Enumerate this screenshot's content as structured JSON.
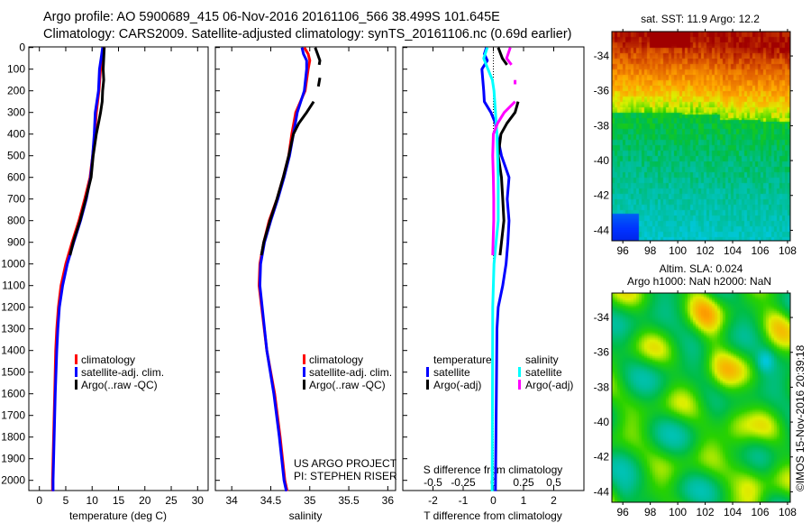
{
  "header": {
    "line1": "Argo profile: AO 5900689_415 06-Nov-2016 20161106_566 38.499S 101.645E",
    "line2": "Climatology: CARS2009. Satellite-adjusted climatology: synTS_20161106.nc (0.69d earlier)"
  },
  "colors": {
    "climatology": "#ff0000",
    "satellite": "#0000ff",
    "argo": "#000000",
    "s_satellite": "#00ffff",
    "s_argo": "#ff00ff"
  },
  "chart_data": [
    {
      "type": "line",
      "id": "temperature",
      "xlabel": "temperature (deg C)",
      "ylabel": "",
      "xlim": [
        -2,
        32
      ],
      "ylim": [
        2050,
        0
      ],
      "xticks": [
        0,
        5,
        10,
        15,
        20,
        25,
        30
      ],
      "xtick_labels": [
        "0",
        "5",
        "10",
        "15",
        "20",
        "25",
        "30"
      ],
      "yticks": [
        0,
        100,
        200,
        300,
        400,
        500,
        600,
        700,
        800,
        900,
        1000,
        1100,
        1200,
        1300,
        1400,
        1500,
        1600,
        1700,
        1800,
        1900,
        2000
      ],
      "ytick_labels": [
        "0",
        "100",
        "200",
        "300",
        "400",
        "500",
        "600",
        "700",
        "800",
        "900",
        "1000",
        "1100",
        "1200",
        "1300",
        "1400",
        "1500",
        "1600",
        "1700",
        "1800",
        "1900",
        "2000"
      ],
      "legend": [
        "climatology",
        "satellite-adj. clim.",
        "Argo(..raw -QC)"
      ],
      "series": [
        {
          "name": "climatology",
          "color": "#ff0000",
          "depth": [
            0,
            50,
            100,
            200,
            300,
            400,
            500,
            600,
            700,
            800,
            900,
            1000,
            1100,
            1200,
            1300,
            1400,
            1600,
            1800,
            2000,
            2050
          ],
          "values": [
            12.3,
            12.0,
            11.6,
            11.3,
            10.8,
            10.5,
            10.1,
            9.6,
            8.6,
            7.5,
            6.2,
            5.0,
            4.1,
            3.6,
            3.3,
            3.1,
            2.9,
            2.7,
            2.5,
            2.5
          ]
        },
        {
          "name": "satellite-adj. clim.",
          "color": "#0000ff",
          "depth": [
            0,
            50,
            100,
            200,
            300,
            400,
            500,
            600,
            700,
            800,
            900,
            1000,
            1100,
            1200,
            1300,
            1400,
            1600,
            1800,
            2000,
            2050
          ],
          "values": [
            12.0,
            11.7,
            11.4,
            11.2,
            10.6,
            10.4,
            10.1,
            9.7,
            8.9,
            7.8,
            6.5,
            5.3,
            4.4,
            3.8,
            3.5,
            3.3,
            3.0,
            2.8,
            2.6,
            2.6
          ]
        },
        {
          "name": "Argo(..raw -QC)",
          "color": "#000000",
          "depth": [
            0,
            50,
            100,
            150,
            200,
            250,
            300,
            350,
            400,
            500,
            600,
            700,
            800,
            900,
            960
          ],
          "values": [
            12.3,
            12.2,
            12.1,
            12.2,
            12.0,
            11.9,
            11.6,
            11.2,
            10.8,
            10.2,
            9.8,
            8.8,
            7.7,
            6.4,
            5.8
          ]
        }
      ]
    },
    {
      "type": "line",
      "id": "salinity",
      "xlabel": "salinity",
      "xlim": [
        33.79,
        36.1
      ],
      "ylim": [
        2050,
        0
      ],
      "xticks": [
        34,
        34.5,
        35,
        35.5,
        36
      ],
      "xtick_labels": [
        "34",
        "34.5",
        "35",
        "35.5",
        "36"
      ],
      "legend": [
        "climatology",
        "satellite-adj. clim.",
        "Argo(..raw -QC)"
      ],
      "annotation": [
        "US ARGO PROJECT",
        "PI: STEPHEN RISER"
      ],
      "series": [
        {
          "name": "climatology",
          "color": "#ff0000",
          "depth": [
            0,
            30,
            60,
            100,
            200,
            300,
            400,
            500,
            600,
            700,
            800,
            900,
            1000,
            1100,
            1400,
            1600,
            1800,
            2000,
            2050
          ],
          "values": [
            34.93,
            34.98,
            35.0,
            34.98,
            34.94,
            34.82,
            34.77,
            34.73,
            34.66,
            34.58,
            34.48,
            34.41,
            34.36,
            34.35,
            34.45,
            34.55,
            34.62,
            34.68,
            34.71
          ]
        },
        {
          "name": "satellite-adj. clim.",
          "color": "#0000ff",
          "depth": [
            0,
            30,
            60,
            100,
            200,
            300,
            400,
            500,
            600,
            700,
            800,
            900,
            1000,
            1100,
            1400,
            1600,
            1800,
            2000,
            2050
          ],
          "values": [
            34.9,
            34.92,
            34.96,
            34.96,
            34.93,
            34.84,
            34.79,
            34.74,
            34.67,
            34.59,
            34.5,
            34.42,
            34.37,
            34.36,
            34.45,
            34.54,
            34.61,
            34.67,
            34.7
          ]
        },
        {
          "name": "Argo(..raw -QC)",
          "color": "#000000",
          "depth": [
            0,
            30,
            60,
            80,
            null,
            140,
            180,
            null,
            250,
            300,
            350,
            400,
            500,
            600,
            700,
            800,
            900,
            960
          ],
          "values": [
            35.07,
            35.1,
            35.13,
            35.12,
            null,
            35.13,
            35.11,
            null,
            35.05,
            34.96,
            34.86,
            34.79,
            34.73,
            34.66,
            34.58,
            34.49,
            34.41,
            34.38
          ]
        }
      ]
    },
    {
      "type": "line",
      "id": "difference",
      "xlabel": "T difference from climatology",
      "xlim": [
        -3,
        3
      ],
      "ylim": [
        2050,
        0
      ],
      "xticks": [
        -2,
        -1,
        0,
        1,
        2
      ],
      "xtick_labels": [
        "-2",
        "-1",
        "0",
        "1",
        "2"
      ],
      "secondary_xlabel": "S difference from climatology",
      "secondary_xlim": [
        -0.75,
        0.75
      ],
      "secondary_xticks": [
        -0.5,
        -0.25,
        0,
        0.25,
        0.5
      ],
      "secondary_xtick_labels": [
        "-0.5",
        "-0.25",
        "0",
        "0.25",
        "0.5"
      ],
      "legend_titles": [
        "temperature",
        "salinity"
      ],
      "legend_t": [
        "satellite",
        "Argo(-adj)"
      ],
      "legend_s": [
        "satellite",
        "Argo(-adj)"
      ],
      "series": [
        {
          "name": "T satellite",
          "axis": "T",
          "color": "#0000ff",
          "depth": [
            0,
            30,
            60,
            100,
            150,
            200,
            250,
            300,
            350,
            400,
            500,
            600,
            700,
            800,
            900,
            1000,
            1100,
            1200,
            1300,
            2050
          ],
          "values": [
            -0.23,
            -0.3,
            -0.2,
            -0.38,
            -0.35,
            -0.32,
            -0.3,
            -0.08,
            0.07,
            0.12,
            0.27,
            0.52,
            0.46,
            0.52,
            0.48,
            0.42,
            0.31,
            0.16,
            0.12,
            0.07
          ]
        },
        {
          "name": "T Argo(-adj)",
          "axis": "T",
          "color": "#000000",
          "depth": [
            0,
            50,
            80,
            null,
            250,
            300,
            350,
            400,
            500,
            600,
            700,
            800,
            900,
            960
          ],
          "values": [
            0.16,
            0.3,
            0.45,
            null,
            0.82,
            0.72,
            0.45,
            0.25,
            0.16,
            0.27,
            0.31,
            0.35,
            0.27,
            0.22
          ]
        },
        {
          "name": "S satellite",
          "axis": "S",
          "color": "#00ffff",
          "depth": [
            0,
            50,
            100,
            150,
            200,
            400,
            600,
            800,
            1000,
            1200,
            2050
          ],
          "values": [
            -0.05,
            -0.08,
            -0.045,
            -0.008,
            0.005,
            0.03,
            0.04,
            0.04,
            0.005,
            -0.005,
            -0.01
          ]
        },
        {
          "name": "S Argo(-adj)",
          "axis": "S",
          "color": "#ff00ff",
          "depth": [
            0,
            50,
            80,
            null,
            150,
            170,
            null,
            250,
            300,
            350,
            400,
            500,
            600,
            700,
            800,
            900,
            960
          ],
          "values": [
            0.14,
            0.11,
            0.15,
            null,
            0.18,
            0.18,
            null,
            0.18,
            0.09,
            0.035,
            0.0,
            -0.005,
            0.0,
            0.003,
            0.003,
            -0.002,
            -0.005
          ]
        }
      ]
    },
    {
      "type": "heatmap",
      "id": "sst-map",
      "title": "sat. SST: 11.9 Argo: 12.2",
      "xlim": [
        95.2,
        108.2
      ],
      "ylim": [
        -44.6,
        -32.6
      ],
      "xticks": [
        96,
        98,
        100,
        102,
        104,
        106,
        108
      ],
      "xtick_labels": [
        "96",
        "98",
        "100",
        "102",
        "104",
        "106",
        "108"
      ],
      "yticks": [
        -34,
        -36,
        -38,
        -40,
        -42,
        -44
      ],
      "ytick_labels": [
        "-34",
        "-36",
        "-38",
        "-40",
        "-42",
        "-44"
      ]
    },
    {
      "type": "heatmap",
      "id": "sla-map",
      "title": "Altim. SLA: 0.024",
      "subtitle": "Argo h1000: NaN h2000: NaN",
      "xlim": [
        95.2,
        108.2
      ],
      "ylim": [
        -44.6,
        -32.6
      ],
      "xticks": [
        96,
        98,
        100,
        102,
        104,
        106,
        108
      ],
      "xtick_labels": [
        "96",
        "98",
        "100",
        "102",
        "104",
        "106",
        "108"
      ],
      "yticks": [
        -34,
        -36,
        -38,
        -40,
        -42,
        -44
      ],
      "ytick_labels": [
        "-34",
        "-36",
        "-38",
        "-40",
        "-42",
        "-44"
      ]
    }
  ],
  "credit": "©IMOS 15-Nov-2016 20:39:18"
}
